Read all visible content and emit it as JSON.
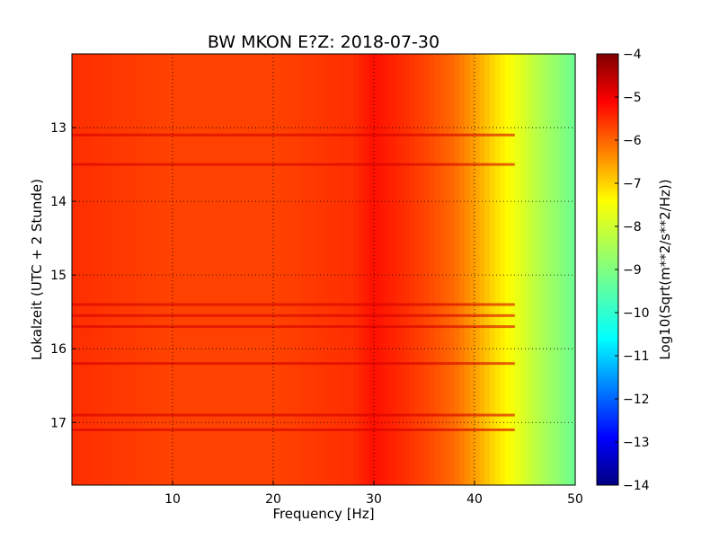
{
  "chart_data": {
    "type": "heatmap",
    "title": "BW MKON E?Z: 2018-07-30",
    "xlabel": "Frequency [Hz]",
    "ylabel": "Lokalzeit (UTC + 2 Stunde)",
    "xlim": [
      0,
      50
    ],
    "ylim": [
      17.85,
      12.0
    ],
    "x_ticks": [
      10,
      20,
      30,
      40,
      50
    ],
    "y_ticks": [
      13,
      14,
      15,
      16,
      17
    ],
    "grid": true,
    "colormap": "jet",
    "colorbar": {
      "label": "Log10(Sqrt(m**2/s**2/Hz))",
      "range": [
        -14,
        -4
      ],
      "ticks": [
        -4,
        -5,
        -6,
        -7,
        -8,
        -9,
        -10,
        -11,
        -12,
        -13,
        -14
      ]
    },
    "frequency_profile": {
      "x": [
        0,
        5,
        10,
        20,
        28,
        30,
        32,
        35,
        38,
        40,
        42,
        44,
        46,
        48,
        50
      ],
      "values": [
        -5.7,
        -5.8,
        -5.9,
        -5.9,
        -5.7,
        -5.4,
        -5.6,
        -5.9,
        -6.3,
        -6.8,
        -7.4,
        -7.9,
        -8.4,
        -8.8,
        -9.2
      ]
    },
    "strong_time_bands": [
      13.1,
      13.5,
      15.4,
      15.55,
      15.7,
      16.2,
      16.9,
      17.1
    ]
  }
}
